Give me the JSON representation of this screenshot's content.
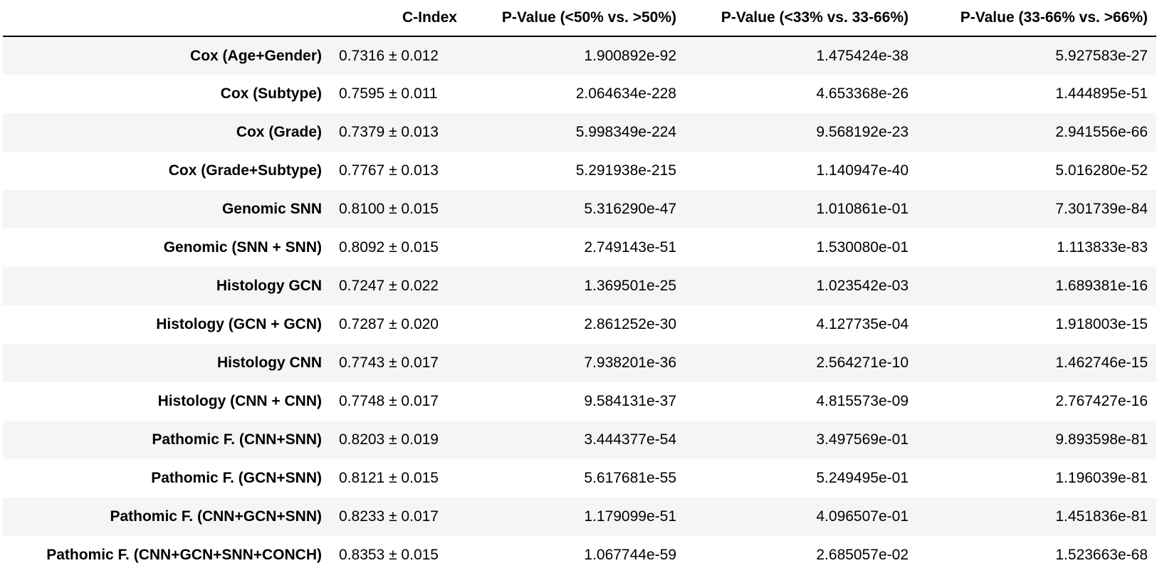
{
  "table": {
    "columns": [
      "",
      "C-Index",
      "P-Value (<50% vs. >50%)",
      "P-Value (<33% vs. 33-66%)",
      "P-Value (33-66% vs. >66%)"
    ],
    "rows": [
      {
        "model": "Cox (Age+Gender)",
        "c_index": "0.7316 ± 0.012",
        "p50": "1.900892e-92",
        "p33_66": "1.475424e-38",
        "p66": "5.927583e-27"
      },
      {
        "model": "Cox (Subtype)",
        "c_index": "0.7595 ± 0.011",
        "p50": "2.064634e-228",
        "p33_66": "4.653368e-26",
        "p66": "1.444895e-51"
      },
      {
        "model": "Cox (Grade)",
        "c_index": "0.7379 ± 0.013",
        "p50": "5.998349e-224",
        "p33_66": "9.568192e-23",
        "p66": "2.941556e-66"
      },
      {
        "model": "Cox (Grade+Subtype)",
        "c_index": "0.7767 ± 0.013",
        "p50": "5.291938e-215",
        "p33_66": "1.140947e-40",
        "p66": "5.016280e-52"
      },
      {
        "model": "Genomic SNN",
        "c_index": "0.8100 ± 0.015",
        "p50": "5.316290e-47",
        "p33_66": "1.010861e-01",
        "p66": "7.301739e-84"
      },
      {
        "model": "Genomic (SNN + SNN)",
        "c_index": "0.8092 ± 0.015",
        "p50": "2.749143e-51",
        "p33_66": "1.530080e-01",
        "p66": "1.113833e-83"
      },
      {
        "model": "Histology GCN",
        "c_index": "0.7247 ± 0.022",
        "p50": "1.369501e-25",
        "p33_66": "1.023542e-03",
        "p66": "1.689381e-16"
      },
      {
        "model": "Histology (GCN + GCN)",
        "c_index": "0.7287 ± 0.020",
        "p50": "2.861252e-30",
        "p33_66": "4.127735e-04",
        "p66": "1.918003e-15"
      },
      {
        "model": "Histology CNN",
        "c_index": "0.7743 ± 0.017",
        "p50": "7.938201e-36",
        "p33_66": "2.564271e-10",
        "p66": "1.462746e-15"
      },
      {
        "model": "Histology (CNN + CNN)",
        "c_index": "0.7748 ± 0.017",
        "p50": "9.584131e-37",
        "p33_66": "4.815573e-09",
        "p66": "2.767427e-16"
      },
      {
        "model": "Pathomic F. (CNN+SNN)",
        "c_index": "0.8203 ± 0.019",
        "p50": "3.444377e-54",
        "p33_66": "3.497569e-01",
        "p66": "9.893598e-81"
      },
      {
        "model": "Pathomic F. (GCN+SNN)",
        "c_index": "0.8121 ± 0.015",
        "p50": "5.617681e-55",
        "p33_66": "5.249495e-01",
        "p66": "1.196039e-81"
      },
      {
        "model": "Pathomic F. (CNN+GCN+SNN)",
        "c_index": "0.8233 ± 0.017",
        "p50": "1.179099e-51",
        "p33_66": "4.096507e-01",
        "p66": "1.451836e-81"
      },
      {
        "model": "Pathomic F. (CNN+GCN+SNN+CONCH)",
        "c_index": "0.8353 ± 0.015",
        "p50": "1.067744e-59",
        "p33_66": "2.685057e-02",
        "p66": "1.523663e-68"
      }
    ]
  },
  "colors": {
    "stripe": "#f5f5f5",
    "background": "#ffffff",
    "text": "#000000"
  }
}
